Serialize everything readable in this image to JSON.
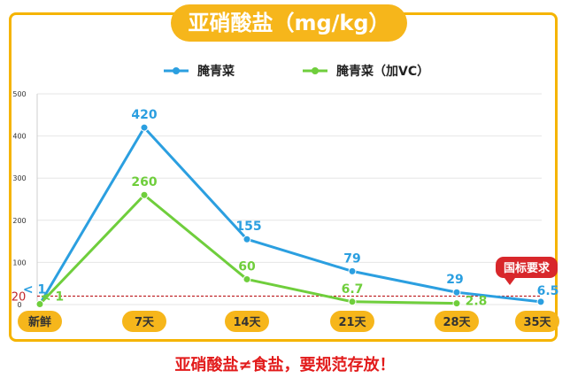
{
  "chart_data": {
    "type": "line",
    "title": "亚硝酸盐（mg/kg）",
    "categories": [
      "新鲜",
      "7天",
      "14天",
      "21天",
      "28天",
      "35天"
    ],
    "series": [
      {
        "name": "腌青菜",
        "color": "#2b9fe0",
        "values": [
          1,
          420,
          155,
          79,
          29,
          6.5
        ],
        "labels": [
          "< 1",
          "420",
          "155",
          "79",
          "29",
          "6.5"
        ]
      },
      {
        "name": "腌青菜（加VC）",
        "color": "#6fce3c",
        "values": [
          1,
          260,
          60,
          6.7,
          2.8,
          null
        ],
        "labels": [
          "< 1",
          "260",
          "60",
          "6.7",
          "2.8",
          ""
        ]
      }
    ],
    "yticks": [
      0,
      100,
      200,
      300,
      400,
      500
    ],
    "ylim": [
      0,
      500
    ],
    "reference_line": {
      "value": 20,
      "label": "20",
      "note": "国标要求",
      "color": "#c0262a"
    },
    "grid": "horizontal"
  },
  "footer": {
    "text": "亚硝酸盐≠食盐，要规范存放！"
  },
  "colors": {
    "accent": "#f6b61b",
    "warning": "#e21b1b"
  }
}
